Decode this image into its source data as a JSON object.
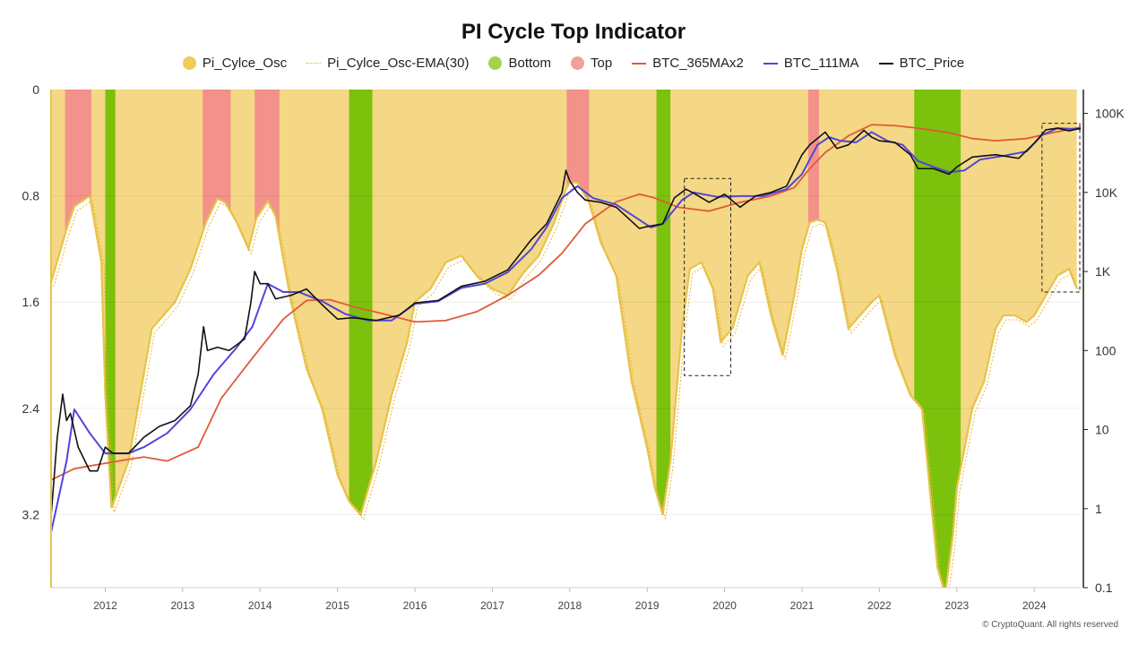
{
  "chart_data": {
    "type": "line",
    "title": "PI Cycle Top Indicator",
    "legend_position": "top-center",
    "grid": "horizontal",
    "x_range": [
      2011.3,
      2024.6
    ],
    "x_ticks": [
      "2012",
      "2013",
      "2014",
      "2015",
      "2016",
      "2017",
      "2018",
      "2019",
      "2020",
      "2021",
      "2022",
      "2023",
      "2024"
    ],
    "y_left": {
      "ticks": [
        "0",
        "0.8",
        "1.6",
        "2.4",
        "3.2"
      ],
      "range": [
        0,
        3.75
      ],
      "inverted": true
    },
    "y_right": {
      "scale": "log",
      "ticks": [
        "100K",
        "10K",
        "1K",
        "100",
        "10",
        "1",
        "0.1"
      ],
      "range": [
        0.1,
        200000
      ]
    },
    "colors": {
      "osc": "#f5d886",
      "osc_edge": "#e8c24a",
      "bottom": "#7cc10c",
      "top": "#f2928a",
      "ma365x2": "#e05a3a",
      "ma111": "#5146d8",
      "price": "#111111"
    },
    "series": [
      {
        "name": "Pi_Cylce_Osc",
        "kind": "area",
        "x": [
          2011.3,
          2011.5,
          2011.6,
          2011.8,
          2011.95,
          2012.0,
          2012.08,
          2012.3,
          2012.6,
          2012.9,
          2013.1,
          2013.3,
          2013.45,
          2013.55,
          2013.7,
          2013.85,
          2013.95,
          2014.1,
          2014.2,
          2014.4,
          2014.6,
          2014.8,
          2015.0,
          2015.15,
          2015.3,
          2015.5,
          2015.7,
          2015.9,
          2016.0,
          2016.2,
          2016.4,
          2016.6,
          2016.8,
          2017.0,
          2017.2,
          2017.4,
          2017.6,
          2017.8,
          2017.95,
          2018.0,
          2018.1,
          2018.25,
          2018.4,
          2018.6,
          2018.8,
          2019.0,
          2019.1,
          2019.2,
          2019.3,
          2019.45,
          2019.55,
          2019.7,
          2019.85,
          2019.95,
          2020.1,
          2020.3,
          2020.45,
          2020.6,
          2020.75,
          2020.9,
          2021.0,
          2021.1,
          2021.2,
          2021.3,
          2021.45,
          2021.6,
          2021.75,
          2021.9,
          2022.0,
          2022.2,
          2022.4,
          2022.55,
          2022.65,
          2022.75,
          2022.85,
          2022.95,
          2023.0,
          2023.1,
          2023.2,
          2023.35,
          2023.5,
          2023.6,
          2023.75,
          2023.9,
          2024.0,
          2024.15,
          2024.3,
          2024.45,
          2024.55
        ],
        "values": [
          1.45,
          1.05,
          0.88,
          0.8,
          1.3,
          2.3,
          3.15,
          2.8,
          1.8,
          1.6,
          1.35,
          1.0,
          0.82,
          0.85,
          1.0,
          1.2,
          0.97,
          0.84,
          0.95,
          1.6,
          2.1,
          2.4,
          2.9,
          3.1,
          3.2,
          2.8,
          2.3,
          1.9,
          1.6,
          1.5,
          1.3,
          1.25,
          1.4,
          1.5,
          1.55,
          1.38,
          1.25,
          1.0,
          0.75,
          0.7,
          0.7,
          0.85,
          1.15,
          1.4,
          2.2,
          2.7,
          3.0,
          3.2,
          2.8,
          1.8,
          1.35,
          1.3,
          1.5,
          1.9,
          1.8,
          1.4,
          1.3,
          1.7,
          2.0,
          1.55,
          1.2,
          1.0,
          0.98,
          1.0,
          1.35,
          1.8,
          1.7,
          1.6,
          1.55,
          2.0,
          2.3,
          2.4,
          3.0,
          3.6,
          3.8,
          3.35,
          3.0,
          2.7,
          2.4,
          2.2,
          1.8,
          1.7,
          1.7,
          1.75,
          1.7,
          1.55,
          1.4,
          1.35,
          1.5
        ]
      },
      {
        "name": "Pi_Cylce_Osc-EMA(30)",
        "kind": "line"
      },
      {
        "name": "Bottom",
        "kind": "band",
        "intervals": [
          [
            2012.0,
            2012.13
          ],
          [
            2015.15,
            2015.45
          ],
          [
            2019.12,
            2019.3
          ],
          [
            2022.45,
            2023.05
          ]
        ]
      },
      {
        "name": "Top",
        "kind": "band",
        "intervals": [
          [
            2011.48,
            2011.82
          ],
          [
            2013.26,
            2013.62
          ],
          [
            2013.93,
            2014.25
          ],
          [
            2017.96,
            2018.25
          ],
          [
            2021.08,
            2021.22
          ]
        ]
      },
      {
        "name": "BTC_365MAx2",
        "kind": "line",
        "x": [
          2011.3,
          2011.6,
          2011.9,
          2012.3,
          2012.5,
          2012.8,
          2013.2,
          2013.5,
          2013.9,
          2014.3,
          2014.6,
          2014.9,
          2015.2,
          2015.6,
          2016.0,
          2016.4,
          2016.8,
          2017.2,
          2017.6,
          2017.9,
          2018.2,
          2018.6,
          2018.9,
          2019.1,
          2019.4,
          2019.8,
          2020.2,
          2020.6,
          2020.9,
          2021.1,
          2021.3,
          2021.6,
          2021.9,
          2022.2,
          2022.5,
          2022.9,
          2023.2,
          2023.5,
          2023.9,
          2024.2,
          2024.6
        ],
        "values": [
          2.3,
          3.2,
          3.6,
          4.2,
          4.5,
          4.0,
          6.0,
          25,
          80,
          250,
          430,
          440,
          360,
          290,
          230,
          240,
          310,
          500,
          900,
          1700,
          4000,
          7600,
          9500,
          8500,
          6500,
          5800,
          7500,
          9000,
          11500,
          20000,
          32000,
          52000,
          72000,
          70000,
          65000,
          57000,
          48000,
          45000,
          48000,
          56000,
          67000
        ]
      },
      {
        "name": "BTC_111MA",
        "kind": "line",
        "x": [
          2011.3,
          2011.5,
          2011.6,
          2011.8,
          2012.0,
          2012.3,
          2012.5,
          2012.8,
          2013.1,
          2013.4,
          2013.7,
          2013.9,
          2014.1,
          2014.3,
          2014.5,
          2014.8,
          2015.1,
          2015.4,
          2015.7,
          2016.0,
          2016.3,
          2016.6,
          2016.9,
          2017.2,
          2017.5,
          2017.7,
          2017.9,
          2018.1,
          2018.3,
          2018.6,
          2018.9,
          2019.05,
          2019.2,
          2019.45,
          2019.6,
          2019.9,
          2020.2,
          2020.5,
          2020.8,
          2021.0,
          2021.2,
          2021.35,
          2021.5,
          2021.7,
          2021.9,
          2022.1,
          2022.3,
          2022.5,
          2022.7,
          2022.9,
          2023.1,
          2023.3,
          2023.6,
          2023.9,
          2024.1,
          2024.3,
          2024.6
        ],
        "values": [
          0.5,
          4,
          18,
          9,
          5,
          5,
          6,
          9,
          18,
          50,
          110,
          200,
          700,
          550,
          550,
          420,
          290,
          240,
          240,
          390,
          420,
          620,
          700,
          980,
          1900,
          3600,
          8500,
          12000,
          8500,
          7000,
          4500,
          3600,
          4000,
          8000,
          10000,
          8800,
          9000,
          9000,
          11000,
          17000,
          40000,
          50000,
          45000,
          43000,
          58000,
          45000,
          40000,
          25000,
          21000,
          18000,
          19000,
          26000,
          29000,
          33000,
          53000,
          65000,
          63000
        ]
      },
      {
        "name": "BTC_Price",
        "kind": "line",
        "x": [
          2011.3,
          2011.38,
          2011.45,
          2011.5,
          2011.55,
          2011.65,
          2011.8,
          2011.9,
          2012.0,
          2012.1,
          2012.3,
          2012.5,
          2012.7,
          2012.9,
          2013.1,
          2013.2,
          2013.27,
          2013.32,
          2013.45,
          2013.6,
          2013.8,
          2013.88,
          2013.93,
          2014.0,
          2014.1,
          2014.2,
          2014.4,
          2014.6,
          2014.8,
          2015.0,
          2015.2,
          2015.5,
          2015.8,
          2016.0,
          2016.3,
          2016.6,
          2016.9,
          2017.2,
          2017.5,
          2017.7,
          2017.9,
          2017.95,
          2018.0,
          2018.1,
          2018.2,
          2018.4,
          2018.6,
          2018.9,
          2019.0,
          2019.2,
          2019.35,
          2019.5,
          2019.6,
          2019.8,
          2020.0,
          2020.2,
          2020.4,
          2020.6,
          2020.8,
          2021.0,
          2021.1,
          2021.3,
          2021.45,
          2021.6,
          2021.8,
          2021.9,
          2022.0,
          2022.2,
          2022.4,
          2022.5,
          2022.7,
          2022.9,
          2023.0,
          2023.2,
          2023.5,
          2023.8,
          2024.0,
          2024.15,
          2024.3,
          2024.45,
          2024.6
        ],
        "values": [
          0.8,
          8,
          28,
          13,
          16,
          6,
          3,
          3,
          6,
          5,
          5,
          8,
          11,
          13,
          20,
          50,
          200,
          100,
          110,
          100,
          140,
          400,
          1000,
          700,
          700,
          450,
          500,
          600,
          380,
          250,
          260,
          240,
          280,
          400,
          430,
          650,
          750,
          1050,
          2500,
          4000,
          10000,
          19000,
          14000,
          10000,
          8000,
          7500,
          6500,
          3500,
          3700,
          4000,
          8500,
          11000,
          9800,
          7500,
          9500,
          6500,
          9000,
          10000,
          12000,
          30000,
          40000,
          58000,
          36000,
          40000,
          61000,
          50000,
          45000,
          43000,
          30000,
          20000,
          20000,
          17000,
          21000,
          28000,
          30000,
          27000,
          42000,
          62000,
          65000,
          60000,
          65000
        ]
      }
    ]
  },
  "watermark": "CryptoQuant",
  "copyright": "© CryptoQuant. All rights reserved"
}
